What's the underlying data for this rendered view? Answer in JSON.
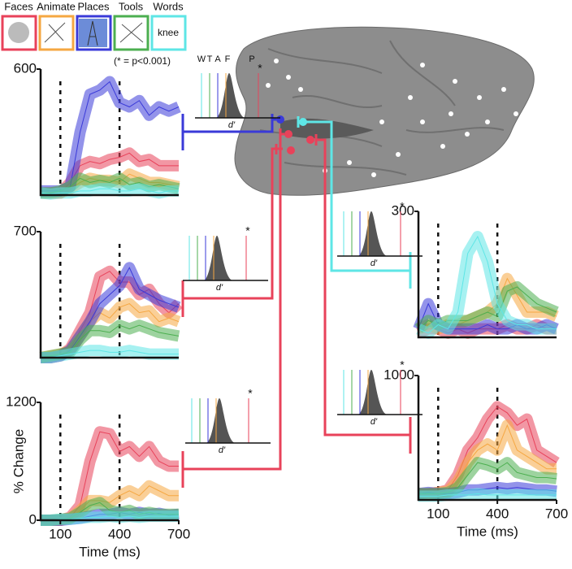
{
  "legend": [
    {
      "name": "Faces",
      "color": "#e8425a"
    },
    {
      "name": "Animate",
      "color": "#f5a742"
    },
    {
      "name": "Places",
      "color": "#3a3ad8"
    },
    {
      "name": "Tools",
      "color": "#4caf50"
    },
    {
      "name": "Words",
      "color": "#5ee6e6"
    }
  ],
  "words_example": "knee",
  "significance_note": "(* = p<0.001)",
  "insets": [
    {
      "labels": [
        "W",
        "T",
        "A",
        "F",
        "P"
      ],
      "axis_label": "d'",
      "star": "*"
    },
    {
      "axis_label": "d'",
      "star": "*"
    },
    {
      "axis_label": "d'",
      "star": "*"
    },
    {
      "axis_label": "d'",
      "star": "*"
    },
    {
      "axis_label": "d'",
      "star": "*"
    }
  ],
  "chart_data": [
    {
      "type": "line",
      "x": [
        0,
        50,
        100,
        150,
        200,
        250,
        300,
        350,
        400,
        450,
        500,
        550,
        600,
        650,
        700
      ],
      "xlim": [
        0,
        700
      ],
      "ylim": [
        0,
        600
      ],
      "yticks": [
        600
      ],
      "markers": [
        100,
        400
      ],
      "series": [
        {
          "color": "#e8425a",
          "values": [
            10,
            10,
            10,
            60,
            140,
            160,
            150,
            170,
            180,
            200,
            160,
            170,
            140,
            140,
            140
          ]
        },
        {
          "color": "#f5a742",
          "values": [
            10,
            10,
            10,
            30,
            60,
            80,
            70,
            70,
            60,
            100,
            80,
            60,
            60,
            50,
            40
          ]
        },
        {
          "color": "#3a3ad8",
          "values": [
            20,
            20,
            20,
            40,
            300,
            480,
            500,
            540,
            440,
            420,
            450,
            380,
            420,
            400,
            420
          ]
        },
        {
          "color": "#4caf50",
          "values": [
            10,
            10,
            20,
            40,
            80,
            60,
            70,
            60,
            80,
            50,
            60,
            40,
            50,
            40,
            30
          ]
        },
        {
          "color": "#5ee6e6",
          "values": [
            10,
            5,
            10,
            10,
            20,
            20,
            30,
            30,
            20,
            20,
            30,
            20,
            10,
            20,
            20
          ]
        }
      ]
    },
    {
      "type": "line",
      "x": [
        0,
        50,
        100,
        150,
        200,
        250,
        300,
        350,
        400,
        450,
        500,
        550,
        600,
        650,
        700
      ],
      "xlim": [
        0,
        700
      ],
      "ylim": [
        0,
        700
      ],
      "yticks": [
        700
      ],
      "markers": [
        100,
        400
      ],
      "series": [
        {
          "color": "#e8425a",
          "values": [
            0,
            0,
            10,
            50,
            150,
            250,
            450,
            480,
            420,
            420,
            350,
            380,
            300,
            250,
            300
          ]
        },
        {
          "color": "#f5a742",
          "values": [
            0,
            10,
            20,
            40,
            120,
            200,
            250,
            220,
            280,
            300,
            250,
            260,
            200,
            220,
            200
          ]
        },
        {
          "color": "#3a3ad8",
          "values": [
            0,
            0,
            10,
            40,
            120,
            200,
            300,
            350,
            400,
            500,
            380,
            350,
            320,
            300,
            280
          ]
        },
        {
          "color": "#4caf50",
          "values": [
            0,
            10,
            20,
            30,
            100,
            150,
            150,
            140,
            180,
            160,
            180,
            160,
            140,
            130,
            120
          ]
        },
        {
          "color": "#5ee6e6",
          "values": [
            0,
            0,
            10,
            20,
            30,
            40,
            40,
            30,
            30,
            40,
            30,
            20,
            20,
            20,
            20
          ]
        }
      ]
    },
    {
      "type": "line",
      "x": [
        0,
        50,
        100,
        150,
        200,
        250,
        300,
        350,
        400,
        450,
        500,
        550,
        600,
        650,
        700
      ],
      "xlim": [
        0,
        700
      ],
      "ylim": [
        0,
        1200
      ],
      "yticks": [
        0,
        1200
      ],
      "xticks": [
        100,
        400,
        700
      ],
      "markers": [
        100,
        400
      ],
      "ylabel": "% Change",
      "xlabel": "Time (ms)",
      "series": [
        {
          "color": "#e8425a",
          "values": [
            0,
            0,
            0,
            30,
            150,
            600,
            900,
            880,
            700,
            750,
            650,
            750,
            600,
            550,
            550
          ]
        },
        {
          "color": "#f5a742",
          "values": [
            0,
            0,
            0,
            20,
            100,
            200,
            200,
            180,
            250,
            300,
            250,
            350,
            300,
            250,
            250
          ]
        },
        {
          "color": "#3a3ad8",
          "values": [
            0,
            0,
            0,
            10,
            20,
            40,
            60,
            60,
            80,
            60,
            80,
            60,
            70,
            50,
            60
          ]
        },
        {
          "color": "#4caf50",
          "values": [
            0,
            0,
            10,
            20,
            80,
            150,
            180,
            100,
            80,
            100,
            60,
            80,
            60,
            60,
            60
          ]
        },
        {
          "color": "#5ee6e6",
          "values": [
            0,
            0,
            10,
            10,
            20,
            30,
            30,
            40,
            30,
            40,
            30,
            40,
            40,
            40,
            40
          ]
        }
      ]
    },
    {
      "type": "line",
      "x": [
        0,
        50,
        100,
        150,
        200,
        250,
        300,
        350,
        400,
        450,
        500,
        550,
        600,
        650,
        700
      ],
      "xlim": [
        0,
        700
      ],
      "ylim": [
        0,
        300
      ],
      "yticks": [
        300
      ],
      "markers": [
        100,
        400
      ],
      "series": [
        {
          "color": "#e8425a",
          "values": [
            10,
            20,
            20,
            10,
            20,
            10,
            20,
            20,
            20,
            30,
            20,
            20,
            30,
            20,
            20
          ]
        },
        {
          "color": "#f5a742",
          "values": [
            20,
            30,
            20,
            30,
            30,
            40,
            50,
            60,
            80,
            140,
            100,
            60,
            60,
            60,
            50
          ]
        },
        {
          "color": "#3a3ad8",
          "values": [
            20,
            80,
            30,
            20,
            20,
            20,
            20,
            30,
            20,
            20,
            30,
            20,
            20,
            30,
            20
          ]
        },
        {
          "color": "#4caf50",
          "values": [
            20,
            40,
            30,
            40,
            40,
            40,
            50,
            60,
            50,
            110,
            120,
            100,
            80,
            70,
            60
          ]
        },
        {
          "color": "#5ee6e6",
          "values": [
            20,
            10,
            30,
            20,
            60,
            200,
            240,
            180,
            80,
            40,
            30,
            30,
            20,
            20,
            20
          ]
        }
      ]
    },
    {
      "type": "line",
      "x": [
        0,
        50,
        100,
        150,
        200,
        250,
        300,
        350,
        400,
        450,
        500,
        550,
        600,
        650,
        700
      ],
      "xlim": [
        0,
        700
      ],
      "ylim": [
        0,
        1000
      ],
      "yticks": [
        1000
      ],
      "xticks": [
        100,
        400,
        700
      ],
      "markers": [
        100,
        400
      ],
      "xlabel": "Time (ms)",
      "series": [
        {
          "color": "#e8425a",
          "values": [
            50,
            50,
            60,
            80,
            200,
            400,
            500,
            650,
            750,
            700,
            600,
            650,
            400,
            350,
            300
          ]
        },
        {
          "color": "#f5a742",
          "values": [
            50,
            50,
            60,
            70,
            150,
            300,
            400,
            450,
            400,
            600,
            400,
            350,
            300,
            250,
            250
          ]
        },
        {
          "color": "#3a3ad8",
          "values": [
            50,
            60,
            50,
            50,
            60,
            80,
            80,
            90,
            100,
            90,
            100,
            90,
            80,
            80,
            70
          ]
        },
        {
          "color": "#4caf50",
          "values": [
            50,
            50,
            50,
            60,
            100,
            200,
            300,
            280,
            250,
            300,
            220,
            200,
            180,
            180,
            170
          ]
        },
        {
          "color": "#5ee6e6",
          "values": [
            30,
            30,
            30,
            40,
            40,
            40,
            50,
            40,
            40,
            40,
            40,
            40,
            40,
            40,
            40
          ]
        }
      ]
    }
  ]
}
